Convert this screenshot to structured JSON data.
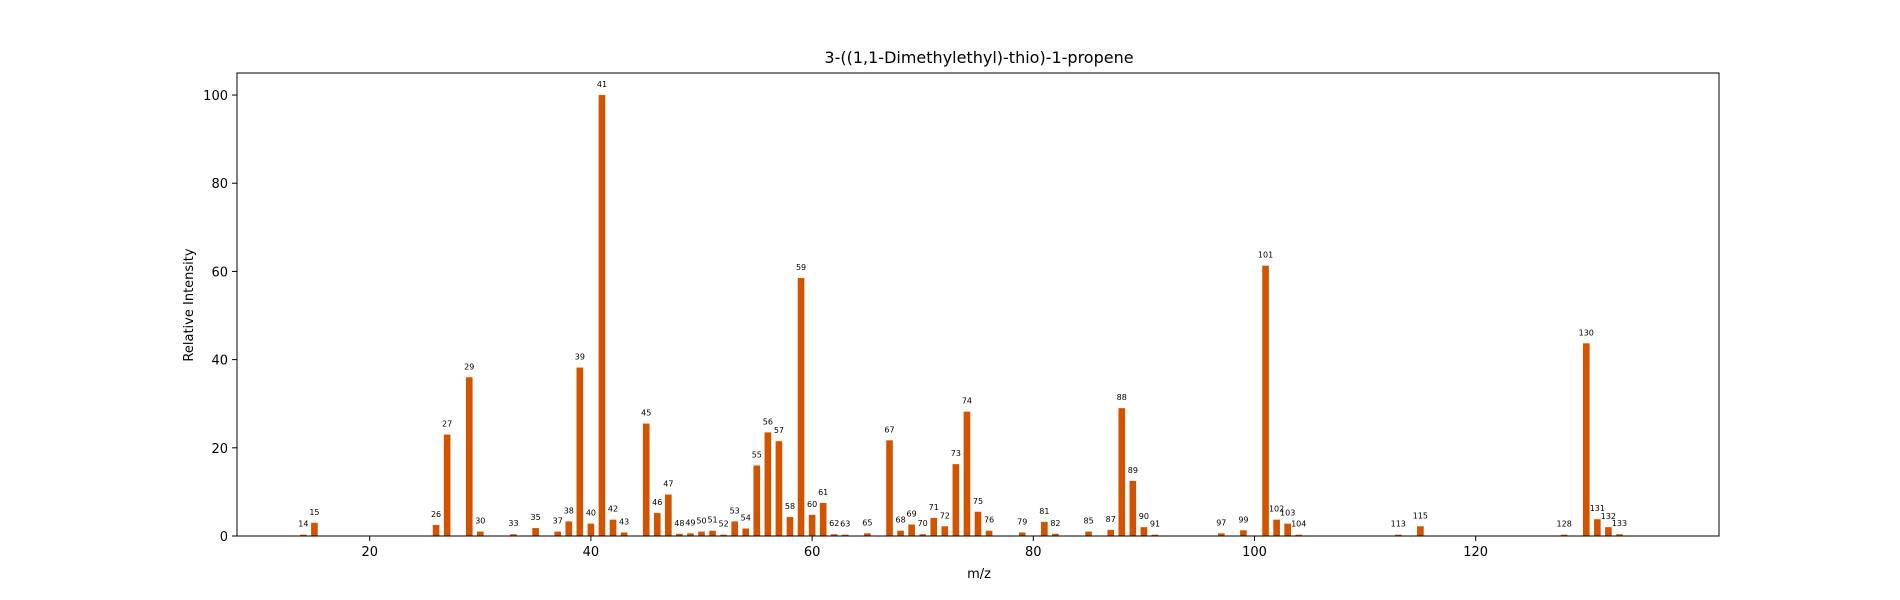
{
  "chart_data": {
    "type": "bar",
    "title": "3-((1,1-Dimethylethyl)-thio)-1-propene",
    "xlabel": "m/z",
    "ylabel": "Relative Intensity",
    "xlim": [
      8,
      142
    ],
    "ylim": [
      0,
      105
    ],
    "xticks": [
      20,
      40,
      60,
      80,
      100,
      120
    ],
    "yticks": [
      0,
      20,
      40,
      60,
      80,
      100
    ],
    "grid": false,
    "bar_color": "#d35400",
    "peaks": [
      {
        "x": 14,
        "y": 0.3
      },
      {
        "x": 15,
        "y": 3.0
      },
      {
        "x": 26,
        "y": 2.5
      },
      {
        "x": 27,
        "y": 23.0
      },
      {
        "x": 29,
        "y": 36.0
      },
      {
        "x": 30,
        "y": 1.0
      },
      {
        "x": 33,
        "y": 0.4
      },
      {
        "x": 35,
        "y": 1.8
      },
      {
        "x": 37,
        "y": 1.0
      },
      {
        "x": 38,
        "y": 3.3
      },
      {
        "x": 39,
        "y": 38.2
      },
      {
        "x": 40,
        "y": 2.8
      },
      {
        "x": 41,
        "y": 100.0
      },
      {
        "x": 42,
        "y": 3.7
      },
      {
        "x": 43,
        "y": 0.8
      },
      {
        "x": 45,
        "y": 25.5
      },
      {
        "x": 46,
        "y": 5.2
      },
      {
        "x": 47,
        "y": 9.4
      },
      {
        "x": 48,
        "y": 0.5
      },
      {
        "x": 49,
        "y": 0.6
      },
      {
        "x": 50,
        "y": 1.0
      },
      {
        "x": 51,
        "y": 1.2
      },
      {
        "x": 52,
        "y": 0.3
      },
      {
        "x": 53,
        "y": 3.3
      },
      {
        "x": 54,
        "y": 1.7
      },
      {
        "x": 55,
        "y": 16.0
      },
      {
        "x": 56,
        "y": 23.5
      },
      {
        "x": 57,
        "y": 21.5
      },
      {
        "x": 58,
        "y": 4.3
      },
      {
        "x": 59,
        "y": 58.5
      },
      {
        "x": 60,
        "y": 4.8
      },
      {
        "x": 61,
        "y": 7.5
      },
      {
        "x": 62,
        "y": 0.4
      },
      {
        "x": 63,
        "y": 0.3
      },
      {
        "x": 65,
        "y": 0.6
      },
      {
        "x": 67,
        "y": 21.7
      },
      {
        "x": 68,
        "y": 1.2
      },
      {
        "x": 69,
        "y": 2.6
      },
      {
        "x": 70,
        "y": 0.4
      },
      {
        "x": 71,
        "y": 4.1
      },
      {
        "x": 72,
        "y": 2.2
      },
      {
        "x": 73,
        "y": 16.3
      },
      {
        "x": 74,
        "y": 28.2
      },
      {
        "x": 75,
        "y": 5.5
      },
      {
        "x": 76,
        "y": 1.2
      },
      {
        "x": 79,
        "y": 0.8
      },
      {
        "x": 81,
        "y": 3.2
      },
      {
        "x": 82,
        "y": 0.5
      },
      {
        "x": 85,
        "y": 1.0
      },
      {
        "x": 87,
        "y": 1.4
      },
      {
        "x": 88,
        "y": 29.0
      },
      {
        "x": 89,
        "y": 12.5
      },
      {
        "x": 90,
        "y": 2.0
      },
      {
        "x": 91,
        "y": 0.3
      },
      {
        "x": 97,
        "y": 0.6
      },
      {
        "x": 99,
        "y": 1.3
      },
      {
        "x": 101,
        "y": 61.3
      },
      {
        "x": 102,
        "y": 3.7
      },
      {
        "x": 103,
        "y": 2.8
      },
      {
        "x": 104,
        "y": 0.3
      },
      {
        "x": 113,
        "y": 0.3
      },
      {
        "x": 115,
        "y": 2.2
      },
      {
        "x": 128,
        "y": 0.3
      },
      {
        "x": 130,
        "y": 43.7
      },
      {
        "x": 131,
        "y": 3.8
      },
      {
        "x": 132,
        "y": 2.0
      },
      {
        "x": 133,
        "y": 0.4
      }
    ]
  }
}
